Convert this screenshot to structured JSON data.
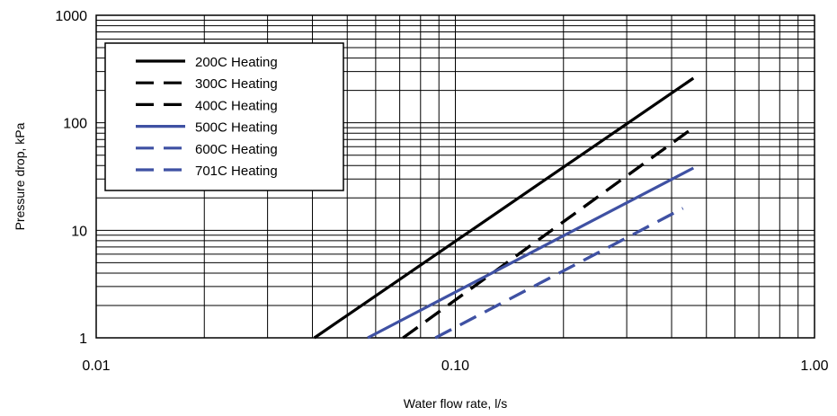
{
  "chart_data": {
    "type": "line",
    "title": "",
    "xlabel": "Water flow rate, l/s",
    "ylabel": "Pressure drop, kPa",
    "x_scale": "log",
    "y_scale": "log",
    "xlim": [
      0.01,
      1.0
    ],
    "ylim": [
      1,
      1000
    ],
    "x_ticks": [
      {
        "value": 0.01,
        "label": "0.01"
      },
      {
        "value": 0.1,
        "label": "0.10"
      },
      {
        "value": 1.0,
        "label": "1.00"
      }
    ],
    "y_ticks": [
      {
        "value": 1,
        "label": "1"
      },
      {
        "value": 10,
        "label": "10"
      },
      {
        "value": 100,
        "label": "100"
      },
      {
        "value": 1000,
        "label": "1000"
      }
    ],
    "grid": true,
    "legend_position": "top-left",
    "series": [
      {
        "name": "200C Heating",
        "color": "#000000",
        "dash": "solid",
        "x": [
          0.0405,
          0.46
        ],
        "y": [
          1,
          260
        ]
      },
      {
        "name": "300C Heating",
        "color": "#000000",
        "dash": "dashed",
        "x": [
          0.0715,
          0.46
        ],
        "y": [
          1,
          90
        ]
      },
      {
        "name": "400C Heating",
        "color": "#000000",
        "dash": "dashed",
        "x": [
          0.0715,
          0.46
        ],
        "y": [
          1,
          90
        ]
      },
      {
        "name": "500C Heating",
        "color": "#3f51a3",
        "dash": "solid",
        "x": [
          0.057,
          0.46
        ],
        "y": [
          1,
          38
        ]
      },
      {
        "name": "600C Heating",
        "color": "#3f51a3",
        "dash": "dashed",
        "x": [
          0.088,
          0.43
        ],
        "y": [
          1,
          16
        ]
      },
      {
        "name": "701C Heating",
        "color": "#3f51a3",
        "dash": "dashed",
        "x": [
          0.088,
          0.43
        ],
        "y": [
          1,
          16
        ]
      }
    ]
  }
}
